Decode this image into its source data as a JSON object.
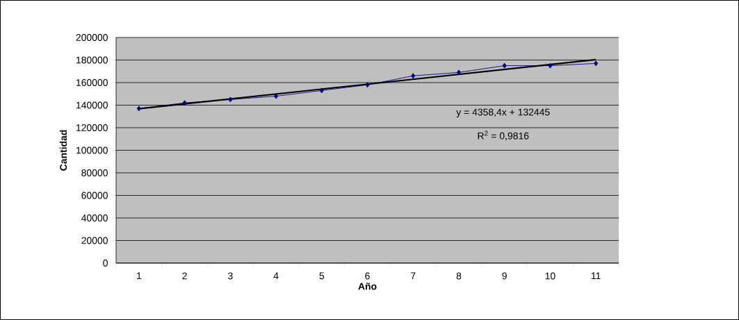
{
  "chart_data": {
    "type": "line",
    "xlabel": "Año",
    "ylabel": "Cantidad",
    "xlim": [
      0.5,
      11.5
    ],
    "ylim": [
      0,
      200000
    ],
    "xticks": [
      {
        "value": 0.5,
        "label": null
      },
      1,
      {
        "value": 1.5,
        "label": null
      },
      2,
      {
        "value": 2.5,
        "label": null
      },
      3,
      {
        "value": 3.5,
        "label": null
      },
      4,
      {
        "value": 4.5,
        "label": null
      },
      5,
      {
        "value": 5.5,
        "label": null
      },
      6,
      {
        "value": 6.5,
        "label": null
      },
      7,
      {
        "value": 7.5,
        "label": null
      },
      8,
      {
        "value": 8.5,
        "label": null
      },
      9,
      {
        "value": 9.5,
        "label": null
      },
      10,
      {
        "value": 10.5,
        "label": null
      },
      11,
      {
        "value": 11.5,
        "label": null
      }
    ],
    "yticks": [
      0,
      20000,
      40000,
      60000,
      80000,
      100000,
      120000,
      140000,
      160000,
      180000,
      200000
    ],
    "grid": "y",
    "series": [
      {
        "marker": "diamond",
        "color": "#000080",
        "x": [
          1,
          2,
          3,
          4,
          5,
          6,
          7,
          8,
          9,
          10,
          11
        ],
        "values": [
          137000,
          142000,
          145000,
          148000,
          153000,
          158000,
          166000,
          169000,
          175000,
          175000,
          177000
        ]
      },
      {
        "type": "line",
        "marker": "none",
        "color": "#000000",
        "x": [
          1,
          11
        ],
        "values": [
          136800,
          180400
        ]
      }
    ],
    "annotations": [
      "y = 4358,4x + 132445",
      "R$^{2}$ = 0,9816"
    ]
  }
}
